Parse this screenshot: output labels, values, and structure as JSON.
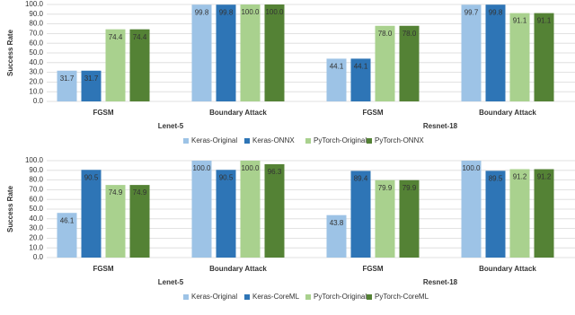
{
  "chart_data": [
    {
      "type": "bar",
      "y_label": "Success Rate",
      "categories": [
        "FGSM",
        "Boundary Attack",
        "FGSM",
        "Boundary Attack"
      ],
      "groups": [
        "Lenet-5",
        "Resnet-18"
      ],
      "series": [
        {
          "name": "Keras-Original",
          "color": "#9dc3e6",
          "values": [
            31.7,
            99.8,
            44.1,
            99.7
          ],
          "value_labels": [
            "31.7",
            "99.8",
            "44.1",
            "99.7"
          ]
        },
        {
          "name": "Keras-ONNX",
          "color": "#2e75b6",
          "values": [
            31.7,
            99.8,
            44.1,
            99.8
          ],
          "value_labels": [
            "31.7",
            "99.8",
            "44.1",
            "99.8"
          ]
        },
        {
          "name": "PyTorch-Original",
          "color": "#a9d18e",
          "values": [
            74.4,
            100.0,
            78.0,
            91.1
          ],
          "value_labels": [
            "74.4",
            "100.0",
            "78.0",
            "91.1"
          ]
        },
        {
          "name": "PyTorch-ONNX",
          "color": "#548235",
          "values": [
            74.4,
            100.0,
            78.0,
            91.1
          ],
          "value_labels": [
            "74.4",
            "100.0",
            "78.0",
            "91.1"
          ]
        }
      ],
      "ylim": [
        0,
        100
      ],
      "yticks": [
        {
          "value": 0,
          "label": "0.0"
        },
        {
          "value": 10,
          "label": "10.0"
        },
        {
          "value": 20,
          "label": "20.0"
        },
        {
          "value": 30,
          "label": "30.0"
        },
        {
          "value": 40,
          "label": "40.0"
        },
        {
          "value": 50,
          "label": "50.0"
        },
        {
          "value": 60,
          "label": "60.0"
        },
        {
          "value": 70,
          "label": "70.0"
        },
        {
          "value": 80,
          "label": "80.0"
        },
        {
          "value": 90,
          "label": "90.0"
        },
        {
          "value": 100,
          "label": "100.0"
        }
      ],
      "grid": true,
      "legend": "bottom"
    },
    {
      "type": "bar",
      "y_label": "Success Rate",
      "categories": [
        "FGSM",
        "Boundary Attack",
        "FGSM",
        "Boundary Attack"
      ],
      "groups": [
        "Lenet-5",
        "Resnet-18"
      ],
      "series": [
        {
          "name": "Keras-Original",
          "color": "#9dc3e6",
          "values": [
            46.1,
            100.0,
            43.8,
            100.0
          ],
          "value_labels": [
            "46.1",
            "100.0",
            "43.8",
            "100.0"
          ]
        },
        {
          "name": "Keras-CoreML",
          "color": "#2e75b6",
          "values": [
            90.5,
            90.5,
            89.4,
            89.5
          ],
          "value_labels": [
            "90.5",
            "90.5",
            "89.4",
            "89.5"
          ]
        },
        {
          "name": "PyTorch-Original",
          "color": "#a9d18e",
          "values": [
            74.9,
            100.0,
            79.9,
            91.2
          ],
          "value_labels": [
            "74.9",
            "100.0",
            "79.9",
            "91.2"
          ]
        },
        {
          "name": "PyTorch-CoreML",
          "color": "#548235",
          "values": [
            74.9,
            96.3,
            79.9,
            91.2
          ],
          "value_labels": [
            "74.9",
            "96.3",
            "79.9",
            "91.2"
          ]
        }
      ],
      "ylim": [
        0,
        100
      ],
      "yticks": [
        {
          "value": 0,
          "label": "0.0"
        },
        {
          "value": 10,
          "label": "10.0"
        },
        {
          "value": 20,
          "label": "20.0"
        },
        {
          "value": 30,
          "label": "30.0"
        },
        {
          "value": 40,
          "label": "40.0"
        },
        {
          "value": 50,
          "label": "50.0"
        },
        {
          "value": 60,
          "label": "60.0"
        },
        {
          "value": 70,
          "label": "70.0"
        },
        {
          "value": 80,
          "label": "80.0"
        },
        {
          "value": 90,
          "label": "90.0"
        },
        {
          "value": 100,
          "label": "100.0"
        }
      ],
      "grid": true,
      "legend": "bottom"
    }
  ]
}
